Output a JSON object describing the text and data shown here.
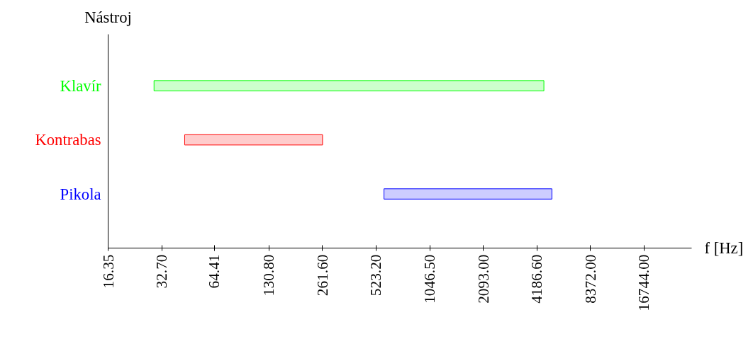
{
  "chart_data": {
    "type": "bar",
    "orientation": "horizontal",
    "log": "x",
    "categories": [
      "Klavír",
      "Kontrabas",
      "Pikola"
    ],
    "base": [
      29.6,
      44.0,
      579
    ],
    "values": [
      4550,
      217.6,
      4500
    ],
    "colors": [
      "#00ff00",
      "#ff0000",
      "#0000ff"
    ],
    "ylabel": "Nástroj",
    "xlabel": "f [Hz]",
    "xlim": [
      16.35,
      30950
    ],
    "xticks": [
      16.35,
      {
        "value": 32.7,
        "label": "32.70"
      },
      64.41,
      {
        "value": 130.8,
        "label": "130.80"
      },
      {
        "value": 261.6,
        "label": "261.60"
      },
      {
        "value": 523.2,
        "label": "523.20"
      },
      {
        "value": 1046.5,
        "label": "1046.50"
      },
      {
        "value": 2093,
        "label": "2093.00"
      },
      {
        "value": 4186.6,
        "label": "4186.60"
      },
      {
        "value": 8372,
        "label": "8372.00"
      },
      {
        "value": 16744,
        "label": "16744.00"
      }
    ],
    "grid": false
  }
}
